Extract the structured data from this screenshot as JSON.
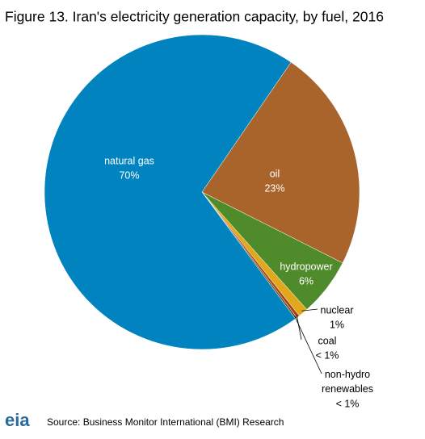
{
  "chart_data": {
    "type": "pie",
    "title": "Figure 13. Iran's electricity generation capacity, by fuel, 2016",
    "categories": [
      "natural gas",
      "oil",
      "hydropower",
      "nuclear",
      "coal",
      "non-hydro renewables"
    ],
    "values": [
      70,
      23,
      6,
      1,
      0.3,
      0.2
    ],
    "value_labels": [
      "70%",
      "23%",
      "6%",
      "1%",
      "< 1%",
      "< 1%"
    ],
    "colors": [
      "#0083be",
      "#a8642a",
      "#4f8a2b",
      "#e2a81b",
      "#a8401c",
      "#6b5a1e"
    ],
    "source": "Source: Business Monitor International (BMI) Research",
    "logo": "eia"
  }
}
